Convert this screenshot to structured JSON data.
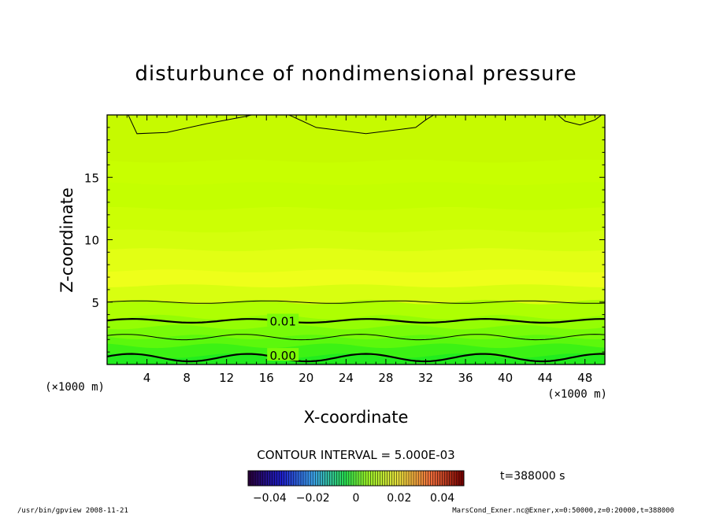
{
  "chart_data": {
    "type": "contour",
    "title": "disturbunce of nondimensional pressure",
    "xlabel": "X-coordinate",
    "ylabel": "Z-coordinate",
    "x_unit": "(×1000 m)",
    "y_unit": "(×1000 m)",
    "xlim": [
      0,
      50
    ],
    "ylim": [
      0,
      20
    ],
    "x_ticks": [
      4,
      8,
      12,
      16,
      20,
      24,
      28,
      32,
      36,
      40,
      44,
      48
    ],
    "y_ticks": [
      5,
      10,
      15
    ],
    "contour_labels": [
      {
        "text": "0.01",
        "x": 17.5,
        "z": 3.5
      },
      {
        "text": "0.00",
        "x": 17.5,
        "z": 0.75
      }
    ],
    "contour_interval_label": "CONTOUR INTERVAL = 5.000E-03",
    "time_label": "t=388000 s",
    "colorbar": {
      "range": [
        -0.05,
        0.05
      ],
      "tick_values": [
        -0.04,
        -0.02,
        0,
        0.02,
        0.04
      ],
      "tick_labels": [
        "−0.04",
        "−0.02",
        "0",
        "0.02",
        "0.04"
      ]
    }
  },
  "footer": {
    "left": "/usr/bin/gpview   2008-11-21",
    "right": "MarsCond_Exner.nc@Exner,x=0:50000,z=0:20000,t=388000"
  },
  "colors": {
    "band_light": "#c8ff00",
    "band_yellow": "#eeff1a",
    "band_green": "#22ee22"
  }
}
